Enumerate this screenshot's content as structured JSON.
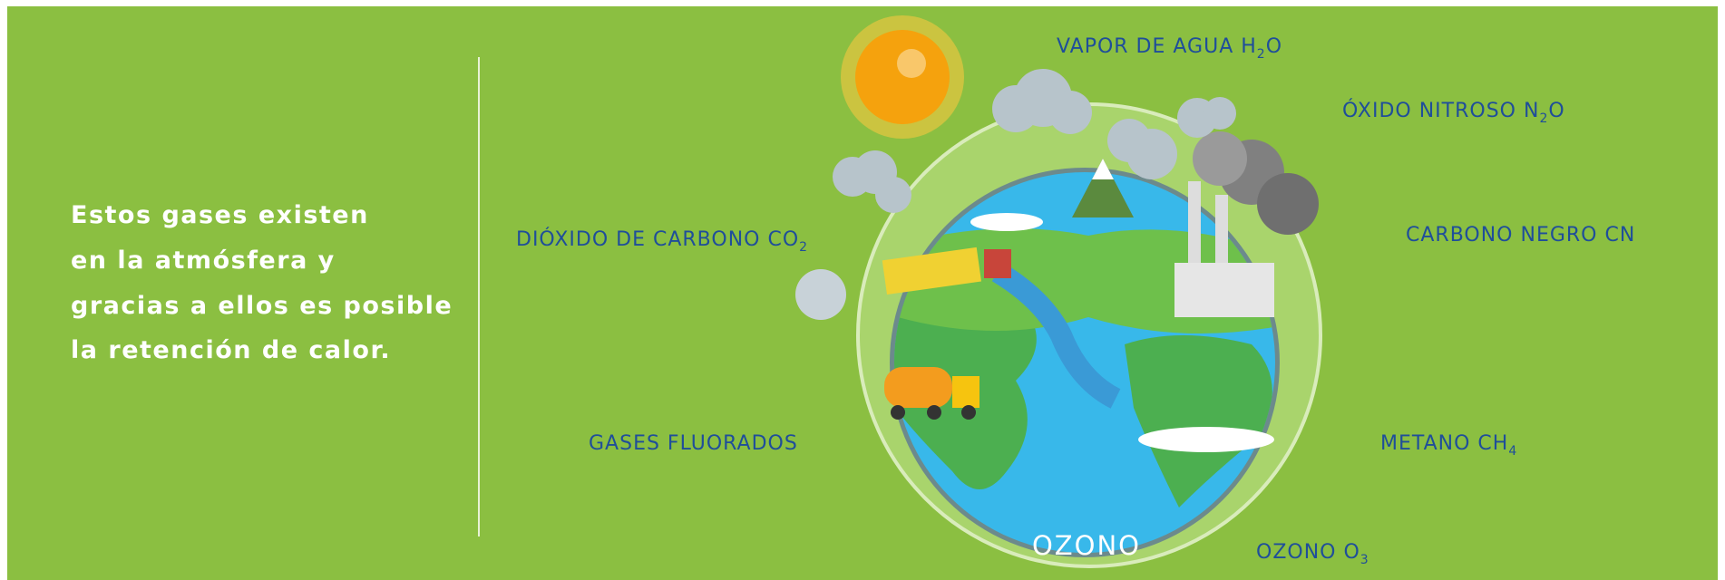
{
  "intro": {
    "lines": [
      "Estos gases existen",
      "en la atmósfera y",
      "gracias a ellos es posible",
      "la retención de calor."
    ]
  },
  "globe": {
    "ring_label": "OZONO"
  },
  "gases": [
    {
      "text": "VAPOR DE AGUA H",
      "subscript": "2",
      "suffix": "O"
    },
    {
      "text": "ÓXIDO NITROSO N",
      "subscript": "2",
      "suffix": "O"
    },
    {
      "text": "DIÓXIDO DE CARBONO CO",
      "subscript": "2"
    },
    {
      "text": "CARBONO NEGRO CN"
    },
    {
      "text": "GASES FLUORADOS"
    },
    {
      "text": "METANO CH",
      "subscript": "4"
    },
    {
      "text": "OZONO  O",
      "subscript": "3"
    }
  ]
}
